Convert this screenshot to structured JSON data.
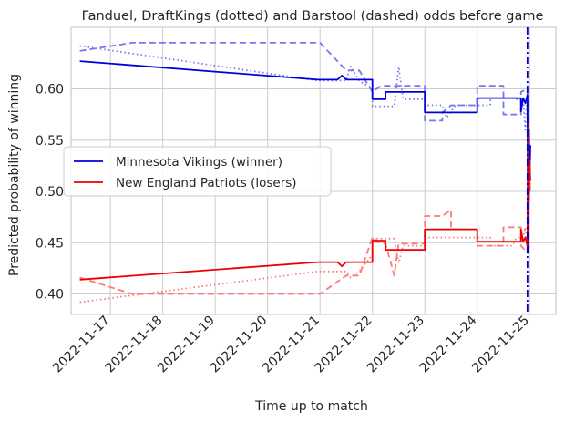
{
  "chart_data": {
    "type": "line",
    "title": "Fanduel, DraftKings (dotted) and Barstool (dashed) odds before game",
    "xlabel": "Time up to match",
    "ylabel": "Predicted probability of winning",
    "xlim": [
      "2022-11-16 06:00",
      "2022-11-25 12:00"
    ],
    "ylim": [
      0.38,
      0.66
    ],
    "x_ticks": [
      "2022-11-17",
      "2022-11-18",
      "2022-11-19",
      "2022-11-20",
      "2022-11-21",
      "2022-11-22",
      "2022-11-23",
      "2022-11-24",
      "2022-11-25"
    ],
    "y_ticks": [
      0.4,
      0.45,
      0.5,
      0.55,
      0.6
    ],
    "y_tick_labels": [
      "0.40",
      "0.45",
      "0.50",
      "0.55",
      "0.60"
    ],
    "grid": true,
    "legend_position": "center-left",
    "game_start_marker": {
      "x": "2022-11-24 23:00",
      "style": "dash-dot",
      "color": "#0000cc"
    },
    "series": [
      {
        "name": "Minnesota Vikings (winner)",
        "book": "Fanduel",
        "style": "solid",
        "color": "#0000dd",
        "points": [
          [
            "2022-11-16 10:00",
            0.627
          ],
          [
            "2022-11-20 23:00",
            0.609
          ],
          [
            "2022-11-21 08:00",
            0.609
          ],
          [
            "2022-11-21 10:00",
            0.613
          ],
          [
            "2022-11-21 12:00",
            0.609
          ],
          [
            "2022-11-22 00:00",
            0.609
          ],
          [
            "2022-11-22 00:00",
            0.59
          ],
          [
            "2022-11-22 06:00",
            0.59
          ],
          [
            "2022-11-22 06:00",
            0.597
          ],
          [
            "2022-11-23 00:00",
            0.597
          ],
          [
            "2022-11-23 00:00",
            0.577
          ],
          [
            "2022-11-24 00:00",
            0.577
          ],
          [
            "2022-11-24 00:00",
            0.591
          ],
          [
            "2022-11-24 20:00",
            0.591
          ],
          [
            "2022-11-24 20:00",
            0.578
          ],
          [
            "2022-11-24 21:00",
            0.591
          ],
          [
            "2022-11-24 22:00",
            0.586
          ],
          [
            "2022-11-24 23:00",
            0.594
          ],
          [
            "2022-11-24 23:20",
            0.44
          ],
          [
            "2022-11-24 23:40",
            0.56
          ],
          [
            "2022-11-25 00:00",
            0.52
          ],
          [
            "2022-11-25 00:20",
            0.545
          ]
        ]
      },
      {
        "name": "New England Patriots (losers)",
        "book": "Fanduel",
        "style": "solid",
        "color": "#ee0000",
        "points": [
          [
            "2022-11-16 10:00",
            0.414
          ],
          [
            "2022-11-20 23:00",
            0.431
          ],
          [
            "2022-11-21 08:00",
            0.431
          ],
          [
            "2022-11-21 10:00",
            0.427
          ],
          [
            "2022-11-21 12:00",
            0.431
          ],
          [
            "2022-11-22 00:00",
            0.431
          ],
          [
            "2022-11-22 00:00",
            0.452
          ],
          [
            "2022-11-22 06:00",
            0.452
          ],
          [
            "2022-11-22 06:00",
            0.443
          ],
          [
            "2022-11-23 00:00",
            0.443
          ],
          [
            "2022-11-23 00:00",
            0.463
          ],
          [
            "2022-11-24 00:00",
            0.463
          ],
          [
            "2022-11-24 00:00",
            0.451
          ],
          [
            "2022-11-24 20:00",
            0.451
          ],
          [
            "2022-11-24 20:00",
            0.463
          ],
          [
            "2022-11-24 21:00",
            0.451
          ],
          [
            "2022-11-24 22:00",
            0.455
          ],
          [
            "2022-11-24 23:00",
            0.447
          ],
          [
            "2022-11-24 23:20",
            0.565
          ],
          [
            "2022-11-24 23:40",
            0.49
          ],
          [
            "2022-11-25 00:00",
            0.53
          ],
          [
            "2022-11-25 00:20",
            0.51
          ]
        ]
      },
      {
        "book": "DraftKings",
        "team": "Minnesota Vikings",
        "style": "dotted",
        "color": "#7777ee",
        "points": [
          [
            "2022-11-16 10:00",
            0.642
          ],
          [
            "2022-11-20 23:00",
            0.608
          ],
          [
            "2022-11-21 12:00",
            0.608
          ],
          [
            "2022-11-21 14:00",
            0.622
          ],
          [
            "2022-11-21 18:00",
            0.608
          ],
          [
            "2022-11-22 00:00",
            0.6
          ],
          [
            "2022-11-22 00:00",
            0.583
          ],
          [
            "2022-11-22 10:00",
            0.583
          ],
          [
            "2022-11-22 12:00",
            0.622
          ],
          [
            "2022-11-22 14:00",
            0.59
          ],
          [
            "2022-11-23 00:00",
            0.59
          ],
          [
            "2022-11-23 00:00",
            0.584
          ],
          [
            "2022-11-23 08:00",
            0.584
          ],
          [
            "2022-11-23 10:00",
            0.572
          ],
          [
            "2022-11-23 14:00",
            0.584
          ],
          [
            "2022-11-24 06:00",
            0.584
          ],
          [
            "2022-11-24 06:00",
            0.591
          ],
          [
            "2022-11-24 16:00",
            0.591
          ],
          [
            "2022-11-24 18:00",
            0.59
          ],
          [
            "2022-11-24 21:00",
            0.59
          ],
          [
            "2022-11-24 22:00",
            0.56
          ],
          [
            "2022-11-24 23:00",
            0.596
          ],
          [
            "2022-11-24 23:20",
            0.47
          ],
          [
            "2022-11-24 23:40",
            0.55
          ],
          [
            "2022-11-25 00:00",
            0.5
          ],
          [
            "2022-11-25 00:20",
            0.54
          ]
        ]
      },
      {
        "book": "DraftKings",
        "team": "New England Patriots",
        "style": "dotted",
        "color": "#ff7777",
        "points": [
          [
            "2022-11-16 10:00",
            0.392
          ],
          [
            "2022-11-20 23:00",
            0.422
          ],
          [
            "2022-11-21 12:00",
            0.422
          ],
          [
            "2022-11-21 14:00",
            0.416
          ],
          [
            "2022-11-21 18:00",
            0.422
          ],
          [
            "2022-11-22 00:00",
            0.438
          ],
          [
            "2022-11-22 00:00",
            0.454
          ],
          [
            "2022-11-22 10:00",
            0.454
          ],
          [
            "2022-11-22 12:00",
            0.43
          ],
          [
            "2022-11-22 14:00",
            0.447
          ],
          [
            "2022-11-23 00:00",
            0.447
          ],
          [
            "2022-11-23 00:00",
            0.455
          ],
          [
            "2022-11-23 08:00",
            0.455
          ],
          [
            "2022-11-24 06:00",
            0.455
          ],
          [
            "2022-11-24 06:00",
            0.447
          ],
          [
            "2022-11-24 16:00",
            0.447
          ],
          [
            "2022-11-24 18:00",
            0.455
          ],
          [
            "2022-11-24 21:00",
            0.455
          ],
          [
            "2022-11-24 22:00",
            0.465
          ],
          [
            "2022-11-24 23:00",
            0.44
          ],
          [
            "2022-11-24 23:20",
            0.56
          ],
          [
            "2022-11-24 23:40",
            0.5
          ],
          [
            "2022-11-25 00:00",
            0.54
          ],
          [
            "2022-11-25 00:20",
            0.505
          ]
        ]
      },
      {
        "book": "Barstool",
        "team": "Minnesota Vikings",
        "style": "dashed",
        "color": "#7777ee",
        "points": [
          [
            "2022-11-16 10:00",
            0.637
          ],
          [
            "2022-11-17 10:00",
            0.645
          ],
          [
            "2022-11-21 00:00",
            0.645
          ],
          [
            "2022-11-21 12:00",
            0.618
          ],
          [
            "2022-11-21 18:00",
            0.618
          ],
          [
            "2022-11-22 00:00",
            0.597
          ],
          [
            "2022-11-22 04:00",
            0.603
          ],
          [
            "2022-11-22 12:00",
            0.603
          ],
          [
            "2022-11-22 12:00",
            0.603
          ],
          [
            "2022-11-23 00:00",
            0.603
          ],
          [
            "2022-11-23 00:00",
            0.569
          ],
          [
            "2022-11-23 08:00",
            0.569
          ],
          [
            "2022-11-23 08:00",
            0.577
          ],
          [
            "2022-11-23 12:00",
            0.584
          ],
          [
            "2022-11-24 00:00",
            0.584
          ],
          [
            "2022-11-24 00:00",
            0.603
          ],
          [
            "2022-11-24 12:00",
            0.603
          ],
          [
            "2022-11-24 12:00",
            0.575
          ],
          [
            "2022-11-24 20:00",
            0.575
          ],
          [
            "2022-11-24 20:00",
            0.597
          ],
          [
            "2022-11-24 23:00",
            0.6
          ],
          [
            "2022-11-24 23:20",
            0.45
          ],
          [
            "2022-11-24 23:40",
            0.56
          ],
          [
            "2022-11-25 00:00",
            0.51
          ],
          [
            "2022-11-25 00:20",
            0.545
          ]
        ]
      },
      {
        "book": "Barstool",
        "team": "New England Patriots",
        "style": "dashed",
        "color": "#ff7777",
        "points": [
          [
            "2022-11-16 10:00",
            0.416
          ],
          [
            "2022-11-17 10:00",
            0.4
          ],
          [
            "2022-11-21 00:00",
            0.4
          ],
          [
            "2022-11-21 12:00",
            0.418
          ],
          [
            "2022-11-21 18:00",
            0.418
          ],
          [
            "2022-11-22 00:00",
            0.455
          ],
          [
            "2022-11-22 04:00",
            0.449
          ],
          [
            "2022-11-22 06:00",
            0.449
          ],
          [
            "2022-11-22 10:00",
            0.418
          ],
          [
            "2022-11-22 12:00",
            0.449
          ],
          [
            "2022-11-23 00:00",
            0.449
          ],
          [
            "2022-11-23 00:00",
            0.476
          ],
          [
            "2022-11-23 08:00",
            0.476
          ],
          [
            "2022-11-23 12:00",
            0.482
          ],
          [
            "2022-11-23 12:00",
            0.463
          ],
          [
            "2022-11-24 00:00",
            0.463
          ],
          [
            "2022-11-24 00:00",
            0.447
          ],
          [
            "2022-11-24 12:00",
            0.447
          ],
          [
            "2022-11-24 12:00",
            0.465
          ],
          [
            "2022-11-24 20:00",
            0.465
          ],
          [
            "2022-11-24 20:00",
            0.447
          ],
          [
            "2022-11-24 23:00",
            0.44
          ],
          [
            "2022-11-24 23:20",
            0.56
          ],
          [
            "2022-11-24 23:40",
            0.49
          ],
          [
            "2022-11-25 00:00",
            0.53
          ],
          [
            "2022-11-25 00:20",
            0.5
          ]
        ]
      }
    ]
  }
}
